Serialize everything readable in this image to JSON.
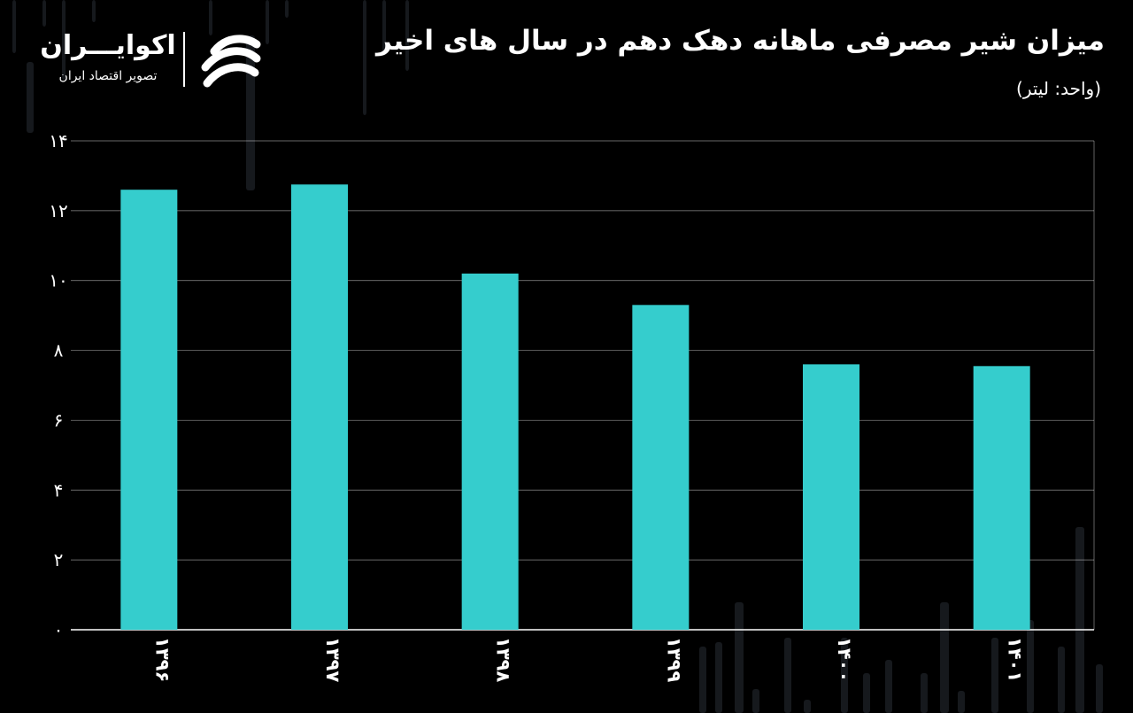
{
  "header": {
    "title": "میزان شیر مصرفی ماهانه دهک دهم در سال های اخیر",
    "unit": "(واحد: لیتر)"
  },
  "brand": {
    "name": "اکوایـــران",
    "tagline": "تصویر اقتصاد ایران",
    "logo_icon": "ecoiran-logo-icon"
  },
  "colors": {
    "background": "#000000",
    "bar": "#35cdcd",
    "grid": "#ffffff",
    "text": "#ffffff"
  },
  "chart_data": {
    "type": "bar",
    "categories": [
      "۱۳۹۶",
      "۱۳۹۷",
      "۱۳۹۸",
      "۱۳۹۹",
      "۱۴۰۰",
      "۱۴۰۱"
    ],
    "values": [
      12.6,
      12.75,
      10.2,
      9.3,
      7.6,
      7.55
    ],
    "y_ticks": [
      "۰",
      "۲",
      "۴",
      "۶",
      "۸",
      "۱۰",
      "۱۲",
      "۱۴"
    ],
    "ylim": [
      0,
      14
    ],
    "grid": true,
    "xlabel": "",
    "ylabel": ""
  }
}
